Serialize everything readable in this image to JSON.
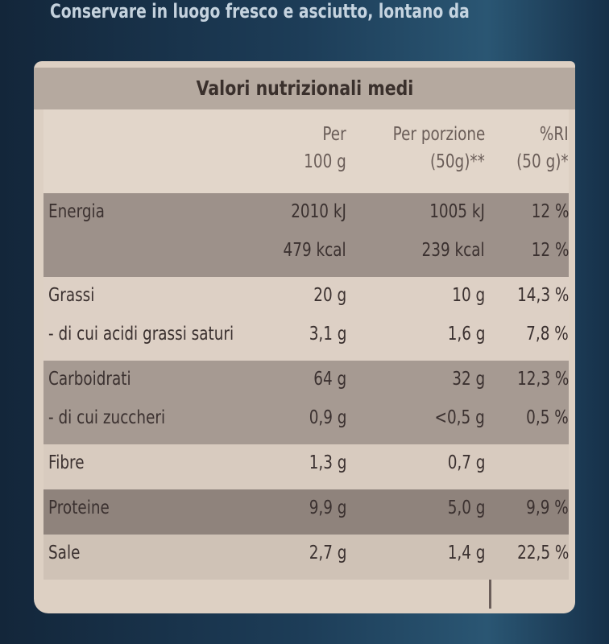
{
  "top_text": "Conservare in luogo fresco e asciutto, lontano da",
  "table": {
    "title": "Valori nutrizionali medi",
    "header": {
      "per_100g": [
        "Per",
        "100 g"
      ],
      "per_serving": [
        "Per porzione",
        "(50g)**"
      ],
      "ri": [
        "%RI",
        "(50 g)*"
      ]
    },
    "groups": [
      {
        "rows": [
          {
            "label": "Energia",
            "per_100g": "2010 kJ",
            "per_serving": "1005 kJ",
            "ri": "12 %"
          },
          {
            "per_100g": "479 kcal",
            "per_serving": "239 kcal",
            "ri": "12 %"
          }
        ]
      },
      {
        "rows": [
          {
            "label": "Grassi",
            "per_100g": "20 g",
            "per_serving": "10 g",
            "ri": "14,3 %"
          },
          {
            "label": "- di cui acidi grassi saturi",
            "per_100g": "3,1 g",
            "per_serving": "1,6 g",
            "ri": "7,8 %"
          }
        ]
      },
      {
        "rows": [
          {
            "label": "Carboidrati",
            "per_100g": "64 g",
            "per_serving": "32 g",
            "ri": "12,3 %"
          },
          {
            "label": "- di cui zuccheri",
            "per_100g": "0,9 g",
            "per_serving": "<0,5 g",
            "ri": "0,5 %"
          }
        ]
      },
      {
        "rows": [
          {
            "label": "Fibre",
            "per_100g": "1,3 g",
            "per_serving": "0,7 g"
          }
        ]
      },
      {
        "rows": [
          {
            "label": "Proteine",
            "per_100g": "9,9 g",
            "per_serving": "5,0 g",
            "ri": "9,9 %"
          }
        ]
      },
      {
        "rows": [
          {
            "label": "Sale",
            "per_100g": "2,7 g",
            "per_serving": "1,4 g",
            "ri": "22,5 %"
          }
        ]
      }
    ]
  }
}
